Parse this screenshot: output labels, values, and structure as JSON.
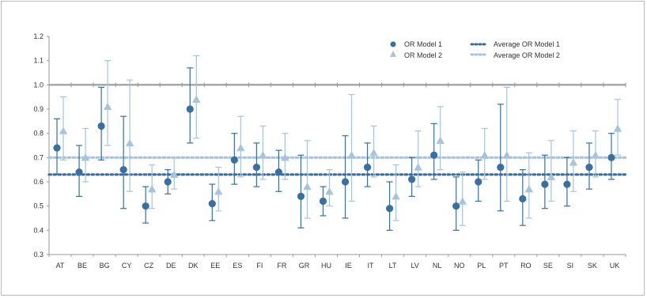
{
  "chart_data": {
    "type": "scatter",
    "title": "",
    "xlabel": "",
    "ylabel": "",
    "ylim": [
      0.3,
      1.2
    ],
    "yticks": [
      "0.3",
      "0.4",
      "0.5",
      "0.6",
      "0.7",
      "0.8",
      "0.9",
      "1.0",
      "1.1",
      "1.2"
    ],
    "reference_line": 1.0,
    "grid": false,
    "legend_position": "top-right",
    "categories": [
      "AT",
      "BE",
      "BG",
      "CY",
      "CZ",
      "DE",
      "DK",
      "EE",
      "ES",
      "FI",
      "FR",
      "GR",
      "HU",
      "IE",
      "IT",
      "LT",
      "LV",
      "NL",
      "NO",
      "PL",
      "PT",
      "RO",
      "SE",
      "SI",
      "SK",
      "UK"
    ],
    "series": [
      {
        "name": "OR Model 1",
        "marker": "circle",
        "color": "#3a6fa0",
        "values": [
          0.74,
          0.64,
          0.83,
          0.65,
          0.5,
          0.6,
          0.9,
          0.51,
          0.69,
          0.66,
          0.64,
          0.54,
          0.52,
          0.6,
          0.66,
          0.49,
          0.61,
          0.71,
          0.5,
          0.6,
          0.66,
          0.53,
          0.59,
          0.59,
          0.66,
          0.7
        ],
        "lower": [
          0.63,
          0.54,
          0.69,
          0.49,
          0.43,
          0.55,
          0.76,
          0.44,
          0.59,
          0.58,
          0.56,
          0.41,
          0.46,
          0.45,
          0.58,
          0.4,
          0.54,
          0.61,
          0.4,
          0.52,
          0.48,
          0.42,
          0.49,
          0.5,
          0.57,
          0.61
        ],
        "upper": [
          0.86,
          0.75,
          0.99,
          0.87,
          0.58,
          0.65,
          1.07,
          0.59,
          0.8,
          0.76,
          0.73,
          0.71,
          0.58,
          0.79,
          0.76,
          0.6,
          0.7,
          0.84,
          0.62,
          0.69,
          0.92,
          0.65,
          0.71,
          0.7,
          0.76,
          0.8
        ]
      },
      {
        "name": "OR Model 2",
        "marker": "triangle",
        "color": "#a9c3dc",
        "values": [
          0.81,
          0.7,
          0.91,
          0.76,
          0.57,
          0.63,
          0.94,
          0.56,
          0.74,
          0.71,
          0.7,
          0.58,
          0.56,
          0.71,
          0.72,
          0.54,
          0.66,
          0.77,
          0.52,
          0.71,
          0.71,
          0.57,
          0.62,
          0.68,
          0.71,
          0.82
        ],
        "lower": [
          0.69,
          0.6,
          0.75,
          0.56,
          0.49,
          0.57,
          0.78,
          0.48,
          0.62,
          0.61,
          0.61,
          0.45,
          0.5,
          0.52,
          0.62,
          0.44,
          0.58,
          0.65,
          0.42,
          0.61,
          0.52,
          0.45,
          0.52,
          0.56,
          0.62,
          0.71
        ],
        "upper": [
          0.95,
          0.82,
          1.1,
          1.02,
          0.67,
          0.7,
          1.12,
          0.66,
          0.87,
          0.83,
          0.8,
          0.77,
          0.65,
          0.96,
          0.83,
          0.67,
          0.81,
          0.91,
          0.64,
          0.82,
          0.99,
          0.72,
          0.77,
          0.81,
          0.81,
          0.94
        ]
      }
    ],
    "average_lines": [
      {
        "name": "Average OR Model 1",
        "value": 0.63,
        "color": "#3a6fa0"
      },
      {
        "name": "Average OR Model 2",
        "value": 0.7,
        "color": "#a9c3dc"
      }
    ],
    "reference_line_color": "#9a9a9a"
  }
}
